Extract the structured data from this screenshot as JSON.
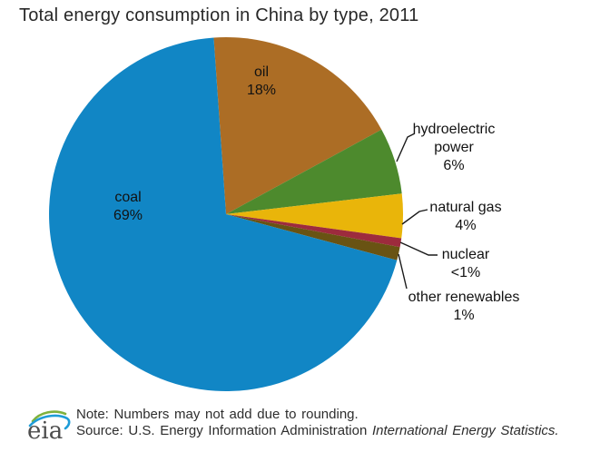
{
  "chart_data": {
    "type": "pie",
    "title": "Total energy consumption in China by type, 2011",
    "start_angle_deg": -4,
    "legend_position": "none (direct labels with leader lines)",
    "slices": [
      {
        "id": "oil",
        "label": "oil",
        "value": 18,
        "display": "18%",
        "color": "#ac6d25",
        "label_lines": [
          "oil",
          "18%"
        ]
      },
      {
        "id": "hydroelectric-power",
        "label": "hydroelectric power",
        "value": 6,
        "display": "6%",
        "color": "#4d8a2d",
        "label_lines": [
          "hydroelectric",
          "power",
          "6%"
        ]
      },
      {
        "id": "natural-gas",
        "label": "natural gas",
        "value": 4,
        "display": "4%",
        "color": "#e9b50a",
        "label_lines": [
          "natural gas",
          "4%"
        ]
      },
      {
        "id": "nuclear",
        "label": "nuclear",
        "value": 0.8,
        "display": "<1%",
        "color": "#9d2b3d",
        "label_lines": [
          "nuclear",
          "<1%"
        ]
      },
      {
        "id": "other-renewables",
        "label": "other renewables",
        "value": 1.2,
        "display": "1%",
        "color": "#695313",
        "label_lines": [
          "other renewables",
          "1%"
        ]
      },
      {
        "id": "coal",
        "label": "coal",
        "value": 69,
        "display": "69%",
        "color": "#1186c5",
        "label_lines": [
          "coal",
          "69%"
        ]
      }
    ]
  },
  "footer": {
    "note": "Note: Numbers may not add due to rounding.",
    "source_regular": "Source: U.S. Energy Information Administration ",
    "source_italic": "International Energy Statistics."
  },
  "logo": {
    "text": "eia"
  }
}
